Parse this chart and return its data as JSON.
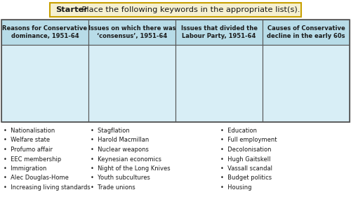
{
  "title_bold": "Starter",
  "title_rest": ": Place the following keywords in the appropriate list(s).",
  "title_box_color": "#f5f0d0",
  "title_border_color": "#c8a000",
  "col_headers": [
    "Reasons for Conservative\ndominance, 1951-64",
    "Issues on which there was\n‘consensus’, 1951-64",
    "Issues that divided the\nLabour Party, 1951-64",
    "Causes of Conservative\ndecline in the early 60s"
  ],
  "header_bg": "#b8dce8",
  "header_border": "#555555",
  "body_bg": "#d8eef6",
  "body_border": "#555555",
  "outer_border": "#555555",
  "col1_items": [
    "Nationalisation",
    "Welfare state",
    "Profumo affair",
    "EEC membership",
    "Immigration",
    "Alec Douglas-Home",
    "Increasing living standards"
  ],
  "col2_items": [
    "Stagflation",
    "Harold Macmillan",
    "Nuclear weapons",
    "Keynesian economics",
    "Night of the Long Knives",
    "Youth subcultures",
    "Trade unions"
  ],
  "col3_items": [
    "Education",
    "Full employment",
    "Decolonisation",
    "Hugh Gaitskell",
    "Vassall scandal",
    "Budget politics",
    "Housing"
  ],
  "col4_items": [],
  "bg_color": "#ffffff",
  "text_color": "#1a1a1a",
  "bullet": "•"
}
